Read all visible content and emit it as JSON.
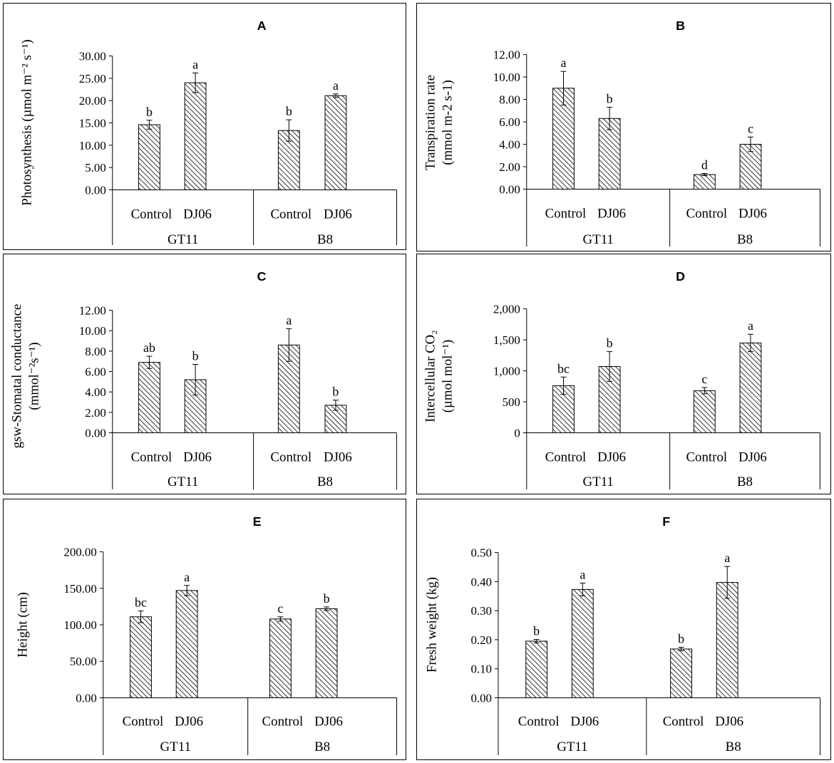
{
  "figure": {
    "colors": {
      "bar_fill": "#ffffff",
      "hatch": "#000000",
      "axis": "#000000",
      "errorbar": "#000000"
    }
  },
  "chart_data": [
    {
      "panel": "A",
      "type": "bar",
      "ylabel": "Photosynthesis (µmol m⁻² s⁻¹)",
      "yticks": [
        "0.00",
        "5.00",
        "10.00",
        "15.00",
        "20.00",
        "25.00",
        "30.00"
      ],
      "ylim": [
        0,
        30
      ],
      "groups": [
        "GT11",
        "B8"
      ],
      "categories": [
        "Control",
        "DJ06",
        "Control",
        "DJ06"
      ],
      "values": [
        14.6,
        24.0,
        13.3,
        21.1
      ],
      "errors": [
        1.0,
        2.2,
        2.4,
        0.4
      ],
      "letters": [
        "b",
        "a",
        "b",
        "a"
      ]
    },
    {
      "panel": "B",
      "type": "bar",
      "ylabel_lines": [
        "Transpiration rate",
        "(mmol m-2 s-1)"
      ],
      "yticks": [
        "0.00",
        "2.00",
        "4.00",
        "6.00",
        "8.00",
        "10.00",
        "12.00"
      ],
      "ylim": [
        0,
        12
      ],
      "groups": [
        "GT11",
        "B8"
      ],
      "categories": [
        "Control",
        "DJ06",
        "Control",
        "DJ06"
      ],
      "values": [
        9.0,
        6.3,
        1.3,
        4.0
      ],
      "errors": [
        1.5,
        1.0,
        0.1,
        0.65
      ],
      "letters": [
        "a",
        "b",
        "d",
        "c"
      ]
    },
    {
      "panel": "C",
      "type": "bar",
      "ylabel_lines": [
        "gsw-Stomatal conductance",
        "(mmol⁻²s⁻¹)"
      ],
      "yticks": [
        "0.00",
        "2.00",
        "4.00",
        "6.00",
        "8.00",
        "10.00",
        "12.00"
      ],
      "ylim": [
        0,
        12
      ],
      "groups": [
        "GT11",
        "B8"
      ],
      "categories": [
        "Control",
        "DJ06",
        "Control",
        "DJ06"
      ],
      "values": [
        6.9,
        5.2,
        8.6,
        2.7
      ],
      "errors": [
        0.6,
        1.5,
        1.6,
        0.5
      ],
      "letters": [
        "ab",
        "b",
        "a",
        "b"
      ]
    },
    {
      "panel": "D",
      "type": "bar",
      "ylabel_lines": [
        "Intercellular  CO₂",
        "(µmol mol⁻¹)"
      ],
      "yticks": [
        "0",
        "500",
        "1,000",
        "1,500",
        "2,000"
      ],
      "ylim": [
        0,
        2000
      ],
      "groups": [
        "GT11",
        "B8"
      ],
      "categories": [
        "Control",
        "DJ06",
        "Control",
        "DJ06"
      ],
      "values": [
        760,
        1070,
        680,
        1450
      ],
      "errors": [
        140,
        240,
        50,
        140
      ],
      "letters": [
        "bc",
        "b",
        "c",
        "a"
      ]
    },
    {
      "panel": "E",
      "type": "bar",
      "ylabel": "Height  (cm)",
      "yticks": [
        "0.00",
        "50.00",
        "100.00",
        "150.00",
        "200.00"
      ],
      "ylim": [
        0,
        200
      ],
      "groups": [
        "GT11",
        "B8"
      ],
      "categories": [
        "Control",
        "DJ06",
        "Control",
        "DJ06"
      ],
      "values": [
        111,
        147,
        108,
        122
      ],
      "errors": [
        8,
        7,
        3,
        2.5
      ],
      "letters": [
        "bc",
        "a",
        "c",
        "b"
      ]
    },
    {
      "panel": "F",
      "type": "bar",
      "ylabel": "Fresh weight  (kg)",
      "yticks": [
        "0.00",
        "0.10",
        "0.20",
        "0.30",
        "0.40",
        "0.50"
      ],
      "ylim": [
        0,
        0.5
      ],
      "groups": [
        "GT11",
        "B8"
      ],
      "categories": [
        "Control",
        "DJ06",
        "Control",
        "DJ06"
      ],
      "values": [
        0.195,
        0.373,
        0.168,
        0.397
      ],
      "errors": [
        0.006,
        0.022,
        0.006,
        0.055
      ],
      "letters": [
        "b",
        "a",
        "b",
        "a"
      ]
    }
  ]
}
